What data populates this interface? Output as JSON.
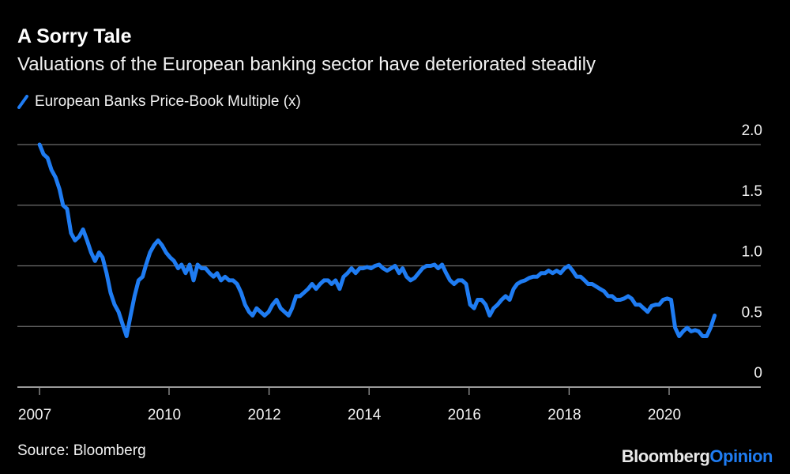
{
  "header": {
    "title": "A Sorry Tale",
    "subtitle": "Valuations of the European banking sector have deteriorated steadily"
  },
  "footer": {
    "source": "Source: Bloomberg",
    "logo_part1": "Bloomberg",
    "logo_part2": "Opinion"
  },
  "colors": {
    "background": "#000000",
    "series": "#1f7cf2",
    "grid": "#6e6e6e",
    "logo_accent": "#1f7cf2"
  },
  "chart_data": {
    "type": "line",
    "title": "A Sorry Tale",
    "subtitle": "Valuations of the European banking sector have deteriorated steadily",
    "xlabel": "",
    "ylabel": "",
    "ylim": [
      0,
      2.0
    ],
    "xlim": [
      2007.0,
      2021.9
    ],
    "grid": true,
    "y_axis_side": "right",
    "legend_placement": "top-left",
    "y_ticks": [
      {
        "value": 0,
        "label": "0"
      },
      {
        "value": 0.5,
        "label": "0.5"
      },
      {
        "value": 1.0,
        "label": "1.0"
      },
      {
        "value": 1.5,
        "label": "1.5"
      },
      {
        "value": 2.0,
        "label": "2.0"
      }
    ],
    "x_ticks": [
      {
        "value": 2007.41,
        "label": "2007"
      },
      {
        "value": 2010,
        "label": "2010"
      },
      {
        "value": 2012,
        "label": "2012"
      },
      {
        "value": 2014,
        "label": "2014"
      },
      {
        "value": 2016,
        "label": "2016"
      },
      {
        "value": 2018,
        "label": "2018"
      },
      {
        "value": 2020,
        "label": "2020"
      }
    ],
    "series": [
      {
        "name": "European Banks Price-Book Multiple (x)",
        "color": "#1f7cf2",
        "x": [
          2007.41,
          2007.49,
          2007.57,
          2007.65,
          2007.73,
          2007.81,
          2007.88,
          2007.96,
          2008.04,
          2008.12,
          2008.2,
          2008.28,
          2008.36,
          2008.44,
          2008.52,
          2008.6,
          2008.67,
          2008.75,
          2008.83,
          2008.91,
          2008.99,
          2009.07,
          2009.15,
          2009.23,
          2009.31,
          2009.39,
          2009.47,
          2009.54,
          2009.62,
          2009.7,
          2009.78,
          2009.86,
          2009.94,
          2010.02,
          2010.1,
          2010.18,
          2010.25,
          2010.33,
          2010.41,
          2010.49,
          2010.57,
          2010.65,
          2010.73,
          2010.81,
          2010.89,
          2010.96,
          2011.04,
          2011.12,
          2011.2,
          2011.28,
          2011.36,
          2011.44,
          2011.52,
          2011.6,
          2011.67,
          2011.75,
          2011.83,
          2011.91,
          2011.99,
          2012.07,
          2012.15,
          2012.23,
          2012.31,
          2012.39,
          2012.46,
          2012.54,
          2012.62,
          2012.7,
          2012.78,
          2012.86,
          2012.94,
          2013.02,
          2013.1,
          2013.18,
          2013.25,
          2013.33,
          2013.41,
          2013.49,
          2013.57,
          2013.65,
          2013.73,
          2013.81,
          2013.88,
          2013.96,
          2014.04,
          2014.12,
          2014.2,
          2014.28,
          2014.36,
          2014.44,
          2014.52,
          2014.6,
          2014.67,
          2014.75,
          2014.83,
          2014.91,
          2014.99,
          2015.07,
          2015.15,
          2015.23,
          2015.31,
          2015.38,
          2015.46,
          2015.54,
          2015.62,
          2015.7,
          2015.78,
          2015.86,
          2015.94,
          2016.02,
          2016.1,
          2016.17,
          2016.25,
          2016.33,
          2016.41,
          2016.49,
          2016.57,
          2016.65,
          2016.73,
          2016.81,
          2016.89,
          2016.96,
          2017.04,
          2017.12,
          2017.2,
          2017.28,
          2017.36,
          2017.44,
          2017.52,
          2017.59,
          2017.67,
          2017.75,
          2017.83,
          2017.91,
          2017.99,
          2018.07,
          2018.15,
          2018.23,
          2018.31,
          2018.38,
          2018.46,
          2018.54,
          2018.62,
          2018.7,
          2018.78,
          2018.86,
          2018.94,
          2019.02,
          2019.1,
          2019.18,
          2019.25,
          2019.33,
          2019.41,
          2019.49,
          2019.57,
          2019.65,
          2019.73,
          2019.8,
          2019.88,
          2019.96,
          2020.04,
          2020.12,
          2020.2,
          2020.28,
          2020.36,
          2020.44,
          2020.52,
          2020.59,
          2020.67,
          2020.75,
          2020.83,
          2020.91
        ],
        "values": [
          2.0,
          1.92,
          1.89,
          1.79,
          1.73,
          1.63,
          1.5,
          1.47,
          1.27,
          1.21,
          1.24,
          1.3,
          1.21,
          1.11,
          1.04,
          1.11,
          1.07,
          0.94,
          0.78,
          0.68,
          0.62,
          0.52,
          0.42,
          0.59,
          0.75,
          0.88,
          0.91,
          1.01,
          1.11,
          1.17,
          1.21,
          1.17,
          1.11,
          1.07,
          1.04,
          0.98,
          1.01,
          0.94,
          1.01,
          0.88,
          1.01,
          0.98,
          0.98,
          0.94,
          0.91,
          0.94,
          0.88,
          0.91,
          0.88,
          0.88,
          0.85,
          0.78,
          0.68,
          0.62,
          0.59,
          0.65,
          0.62,
          0.59,
          0.62,
          0.68,
          0.72,
          0.65,
          0.62,
          0.59,
          0.65,
          0.75,
          0.75,
          0.78,
          0.81,
          0.85,
          0.81,
          0.85,
          0.88,
          0.88,
          0.85,
          0.88,
          0.81,
          0.91,
          0.94,
          0.98,
          0.94,
          0.98,
          0.98,
          0.99,
          0.98,
          1.0,
          1.01,
          0.98,
          0.96,
          0.98,
          1.0,
          0.94,
          0.98,
          0.91,
          0.88,
          0.9,
          0.94,
          0.98,
          1.0,
          1.0,
          1.01,
          0.98,
          1.01,
          0.94,
          0.88,
          0.85,
          0.88,
          0.88,
          0.85,
          0.68,
          0.65,
          0.72,
          0.72,
          0.68,
          0.59,
          0.65,
          0.68,
          0.72,
          0.75,
          0.72,
          0.81,
          0.85,
          0.87,
          0.88,
          0.9,
          0.91,
          0.91,
          0.94,
          0.94,
          0.96,
          0.94,
          0.96,
          0.94,
          0.98,
          1.0,
          0.96,
          0.91,
          0.91,
          0.88,
          0.85,
          0.85,
          0.83,
          0.81,
          0.79,
          0.75,
          0.75,
          0.72,
          0.72,
          0.73,
          0.75,
          0.73,
          0.68,
          0.68,
          0.65,
          0.62,
          0.67,
          0.68,
          0.68,
          0.72,
          0.73,
          0.72,
          0.49,
          0.42,
          0.46,
          0.49,
          0.46,
          0.47,
          0.46,
          0.42,
          0.42,
          0.49,
          0.59
        ]
      }
    ]
  }
}
